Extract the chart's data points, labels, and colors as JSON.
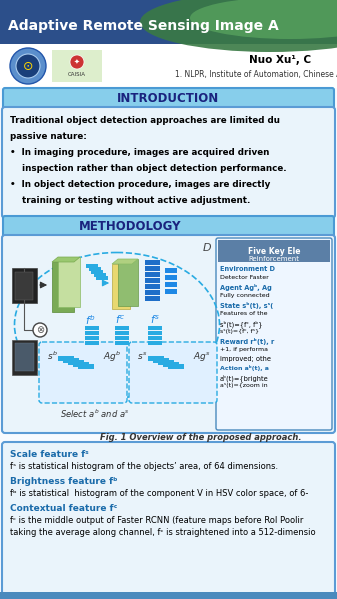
{
  "title": "Adaptive Remote Sensing Image A",
  "author": "Nuo Xu¹, C",
  "affiliation": "1. NLPR, Institute of Automation, Chinese Ac",
  "intro_header": "INTRODUCTION",
  "method_header": "METHODOLOGY",
  "intro_lines": [
    "Traditional object detection approaches are limited du",
    "passive nature:",
    "•  In imaging procedure, images are acquired driven",
    "    inspection rather than object detection performance.",
    "•  In object detection procedure, images are directly",
    "    training or testing without active adjustment."
  ],
  "fig_caption": "Fig. 1 Overview of the proposed approach.",
  "scale_title": "Scale feature fˢ",
  "scale_text": "fˢ is statistical histogram of the objects’ area, of 64 dimensions.",
  "brightness_title": "Brightness feature fᵇ",
  "brightness_text": "fᵇ is statistical  histogram of the component V in HSV color space, of 6-",
  "contextual_title": "Contextual feature fᶜ",
  "contextual_text1": "fᶜ is the middle output of Faster RCNN (feature maps before RoI Poolir",
  "contextual_text2": "taking the average along channel, fᶜ is straightened into a 512-dimensio",
  "five_key_line1": "Five Key Ele",
  "five_key_line2": "Reinforcement",
  "env_label": "Environment D",
  "env_text": "Detector Faster",
  "agent_label": "Agent Agᵇ, Ag",
  "agent_text": "Fully connected",
  "state_label": "State sᵇ(t), sˢ(",
  "state_text1": "Features of the",
  "state_text2": "sᵇ(t)={fᶜ, fᵇ}",
  "state_text3": "sˢ(t)={fᶜ, fˢ}",
  "reward_label": "Reward rᵇ(t), r",
  "reward_text1": "+1, if performa",
  "reward_text2": "improved; othe",
  "action_label": "Action aᵇ(t), a",
  "action_text1": "aᵇ(t)={brighte",
  "action_text2": "aˢ(t)={zoom in",
  "title_bg": "#2C4F8A",
  "green_arc": "#4A8C50",
  "logo_band_bg": "#FFFFFF",
  "section_bar_bg": "#5B9BD5",
  "intro_panel_bg": "#EAF4FB",
  "intro_panel_border": "#5B9BD5",
  "method_panel_bg": "#EAF4FB",
  "right_panel_bg": "#EEF6FF",
  "right_header_bg": "#5B7FA6",
  "cyan_bar": "#29ABE2",
  "green_block": "#8BBD6A",
  "green_block2": "#A8CC80",
  "yellow_block": "#E8D870",
  "blue_bar_color": "#1E88E5",
  "dark_gray": "#2A2A2A",
  "body_bg": "#F8FBFF"
}
